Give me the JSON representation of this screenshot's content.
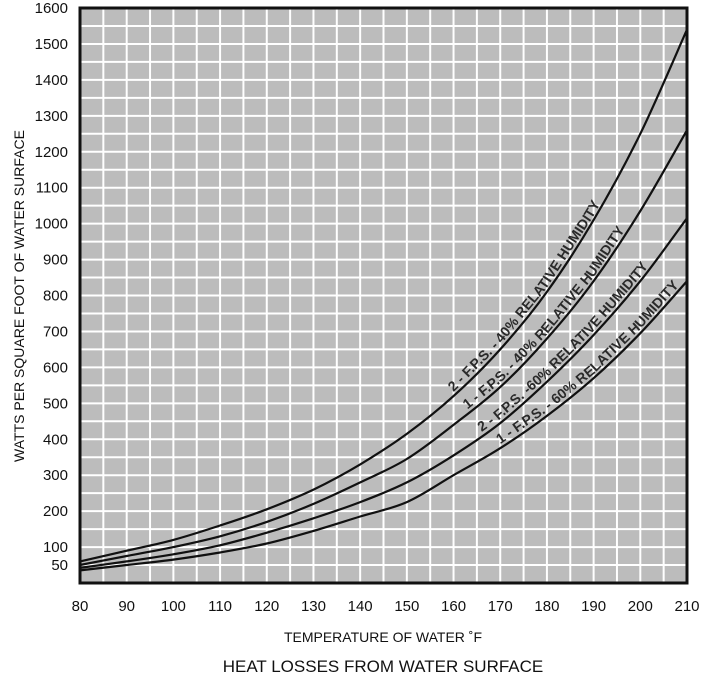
{
  "chart_data": {
    "type": "line",
    "title": "HEAT LOSSES FROM WATER SURFACE",
    "xlabel": "TEMPERATURE OF WATER ˚F",
    "ylabel": "WATTS PER SQUARE FOOT OF WATER SURFACE",
    "xlim": [
      80,
      210
    ],
    "ylim": [
      0,
      1600
    ],
    "x_ticks": [
      "80",
      "90",
      "100",
      "110",
      "120",
      "130",
      "140",
      "150",
      "160",
      "170",
      "180",
      "190",
      "200",
      "210"
    ],
    "y_ticks": [
      {
        "label": "50",
        "value": 50
      },
      {
        "label": "100",
        "value": 100
      },
      {
        "label": "200",
        "value": 200
      },
      {
        "label": "300",
        "value": 300
      },
      {
        "label": "400",
        "value": 400
      },
      {
        "label": "500",
        "value": 500
      },
      {
        "label": "600",
        "value": 600
      },
      {
        "label": "700",
        "value": 700
      },
      {
        "label": "800",
        "value": 800
      },
      {
        "label": "900",
        "value": 900
      },
      {
        "label": "1000",
        "value": 1000
      },
      {
        "label": "1100",
        "value": 1100
      },
      {
        "label": "1200",
        "value": 1200
      },
      {
        "label": "1300",
        "value": 1300
      },
      {
        "label": "1400",
        "value": 1400
      },
      {
        "label": "1500",
        "value": 1500
      },
      {
        "label": "1600",
        "value": 1600
      }
    ],
    "grid": true,
    "background_color": "#bcbcbc",
    "grid_color": "#ffffff",
    "line_color": "#111111",
    "x": [
      80,
      90,
      100,
      110,
      120,
      130,
      140,
      150,
      160,
      170,
      180,
      190,
      200,
      210
    ],
    "series": [
      {
        "name": "2 - F.P.S. - 40% RELATIVE HUMIDITY",
        "values": [
          60,
          90,
          120,
          160,
          205,
          260,
          330,
          415,
          520,
          650,
          810,
          1010,
          1250,
          1540
        ]
      },
      {
        "name": "1 - F.P.S. - 40% RELATIVE HUMIDITY",
        "values": [
          50,
          75,
          100,
          130,
          170,
          220,
          280,
          345,
          440,
          545,
          680,
          840,
          1035,
          1260
        ]
      },
      {
        "name": "2 - F.P.S. -60% RELATIVE HUMIDITY",
        "values": [
          42,
          60,
          80,
          105,
          140,
          180,
          225,
          280,
          355,
          445,
          560,
          690,
          840,
          1015
        ]
      },
      {
        "name": "1 - F.P.S. - 60% RELATIVE HUMIDITY",
        "values": [
          35,
          50,
          65,
          85,
          110,
          145,
          185,
          225,
          300,
          375,
          465,
          570,
          695,
          840
        ]
      }
    ]
  }
}
